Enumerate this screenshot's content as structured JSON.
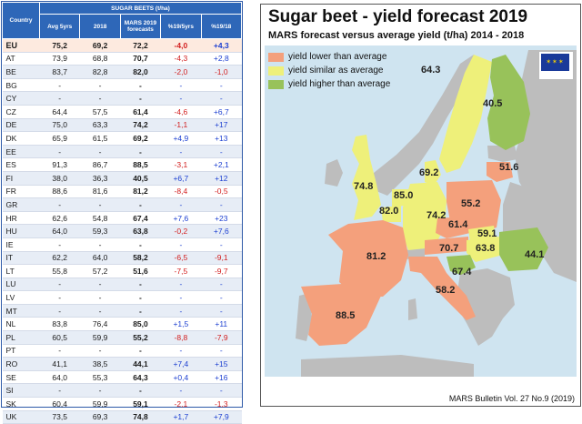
{
  "table": {
    "superheader": "SUGAR BEETS (t/ha)",
    "country_header": "Country",
    "columns": [
      "Avg 5yrs",
      "2018",
      "MARS 2019 forecasts",
      "%19/5yrs",
      "%19/18"
    ],
    "rows": [
      {
        "c": "EU",
        "a": "75,2",
        "b": "69,2",
        "f": "72,2",
        "p1": "-4,0",
        "p2": "+4,3"
      },
      {
        "c": "AT",
        "a": "73,9",
        "b": "68,8",
        "f": "70,7",
        "p1": "-4,3",
        "p2": "+2,8"
      },
      {
        "c": "BE",
        "a": "83,7",
        "b": "82,8",
        "f": "82,0",
        "p1": "-2,0",
        "p2": "-1,0"
      },
      {
        "c": "BG",
        "a": "-",
        "b": "-",
        "f": "-",
        "p1": "-",
        "p2": "-"
      },
      {
        "c": "CY",
        "a": "-",
        "b": "-",
        "f": "-",
        "p1": "-",
        "p2": "-"
      },
      {
        "c": "CZ",
        "a": "64,4",
        "b": "57,5",
        "f": "61,4",
        "p1": "-4,6",
        "p2": "+6,7"
      },
      {
        "c": "DE",
        "a": "75,0",
        "b": "63,3",
        "f": "74,2",
        "p1": "-1,1",
        "p2": "+17"
      },
      {
        "c": "DK",
        "a": "65,9",
        "b": "61,5",
        "f": "69,2",
        "p1": "+4,9",
        "p2": "+13"
      },
      {
        "c": "EE",
        "a": "-",
        "b": "-",
        "f": "-",
        "p1": "-",
        "p2": "-"
      },
      {
        "c": "ES",
        "a": "91,3",
        "b": "86,7",
        "f": "88,5",
        "p1": "-3,1",
        "p2": "+2,1"
      },
      {
        "c": "FI",
        "a": "38,0",
        "b": "36,3",
        "f": "40,5",
        "p1": "+6,7",
        "p2": "+12"
      },
      {
        "c": "FR",
        "a": "88,6",
        "b": "81,6",
        "f": "81,2",
        "p1": "-8,4",
        "p2": "-0,5"
      },
      {
        "c": "GR",
        "a": "-",
        "b": "-",
        "f": "-",
        "p1": "-",
        "p2": "-"
      },
      {
        "c": "HR",
        "a": "62,6",
        "b": "54,8",
        "f": "67,4",
        "p1": "+7,6",
        "p2": "+23"
      },
      {
        "c": "HU",
        "a": "64,0",
        "b": "59,3",
        "f": "63,8",
        "p1": "-0,2",
        "p2": "+7,6"
      },
      {
        "c": "IE",
        "a": "-",
        "b": "-",
        "f": "-",
        "p1": "-",
        "p2": "-"
      },
      {
        "c": "IT",
        "a": "62,2",
        "b": "64,0",
        "f": "58,2",
        "p1": "-6,5",
        "p2": "-9,1"
      },
      {
        "c": "LT",
        "a": "55,8",
        "b": "57,2",
        "f": "51,6",
        "p1": "-7,5",
        "p2": "-9,7"
      },
      {
        "c": "LU",
        "a": "-",
        "b": "-",
        "f": "-",
        "p1": "-",
        "p2": "-"
      },
      {
        "c": "LV",
        "a": "-",
        "b": "-",
        "f": "-",
        "p1": "-",
        "p2": "-"
      },
      {
        "c": "MT",
        "a": "-",
        "b": "-",
        "f": "-",
        "p1": "-",
        "p2": "-"
      },
      {
        "c": "NL",
        "a": "83,8",
        "b": "76,4",
        "f": "85,0",
        "p1": "+1,5",
        "p2": "+11"
      },
      {
        "c": "PL",
        "a": "60,5",
        "b": "59,9",
        "f": "55,2",
        "p1": "-8,8",
        "p2": "-7,9"
      },
      {
        "c": "PT",
        "a": "-",
        "b": "-",
        "f": "-",
        "p1": "-",
        "p2": "-"
      },
      {
        "c": "RO",
        "a": "41,1",
        "b": "38,5",
        "f": "44,1",
        "p1": "+7,4",
        "p2": "+15"
      },
      {
        "c": "SE",
        "a": "64,0",
        "b": "55,3",
        "f": "64,3",
        "p1": "+0,4",
        "p2": "+16"
      },
      {
        "c": "SI",
        "a": "-",
        "b": "-",
        "f": "-",
        "p1": "-",
        "p2": "-"
      },
      {
        "c": "SK",
        "a": "60,4",
        "b": "59,9",
        "f": "59,1",
        "p1": "-2,1",
        "p2": "-1,3"
      },
      {
        "c": "UK",
        "a": "73,5",
        "b": "69,3",
        "f": "74,8",
        "p1": "+1,7",
        "p2": "+7,9"
      }
    ]
  },
  "map": {
    "title": "Sugar beet - yield forecast 2019",
    "subtitle": "MARS forecast versus average yield (t/ha) 2014 - 2018",
    "legend": [
      {
        "label": "yield lower than average",
        "color": "#f4a07c"
      },
      {
        "label": "yield similar as average",
        "color": "#eef07a"
      },
      {
        "label": "yield higher than average",
        "color": "#98c25a"
      }
    ],
    "footer": "MARS Bulletin Vol. 27 No.9 (2019)",
    "colors": {
      "sea": "#cfe4f0",
      "nodata": "#bdbdbd",
      "lower": "#f4a07c",
      "similar": "#eef07a",
      "higher": "#98c25a"
    }
  },
  "chart_data": {
    "type": "table",
    "title": "Sugar beet - yield forecast 2019",
    "subtitle": "MARS forecast versus average yield (t/ha) 2014 - 2018",
    "regions": [
      {
        "country": "SE",
        "value": 64.3,
        "class": "similar"
      },
      {
        "country": "FI",
        "value": 40.5,
        "class": "higher"
      },
      {
        "country": "DK",
        "value": 69.2,
        "class": "similar"
      },
      {
        "country": "LT",
        "value": 51.6,
        "class": "lower"
      },
      {
        "country": "UK",
        "value": 74.8,
        "class": "similar"
      },
      {
        "country": "NL",
        "value": 85.0,
        "class": "similar"
      },
      {
        "country": "BE",
        "value": 82.0,
        "class": "similar"
      },
      {
        "country": "DE",
        "value": 74.2,
        "class": "similar"
      },
      {
        "country": "PL",
        "value": 55.2,
        "class": "lower"
      },
      {
        "country": "CZ",
        "value": 61.4,
        "class": "lower"
      },
      {
        "country": "SK",
        "value": 59.1,
        "class": "similar"
      },
      {
        "country": "AT",
        "value": 70.7,
        "class": "lower"
      },
      {
        "country": "HU",
        "value": 63.8,
        "class": "similar"
      },
      {
        "country": "RO",
        "value": 44.1,
        "class": "higher"
      },
      {
        "country": "HR",
        "value": 67.4,
        "class": "higher"
      },
      {
        "country": "FR",
        "value": 81.2,
        "class": "lower"
      },
      {
        "country": "IT",
        "value": 58.2,
        "class": "lower"
      },
      {
        "country": "ES",
        "value": 88.5,
        "class": "lower"
      }
    ]
  }
}
